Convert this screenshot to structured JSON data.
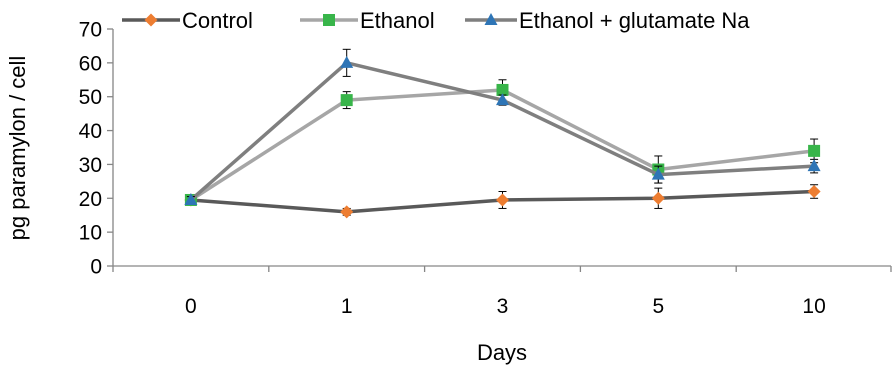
{
  "chart_data": {
    "type": "line",
    "categories": [
      "0",
      "1",
      "3",
      "5",
      "10"
    ],
    "xlabel": "Days",
    "ylabel": "pg paramylon / cell",
    "ylim": [
      0,
      70
    ],
    "yticks": [
      "0",
      "10",
      "20",
      "30",
      "40",
      "50",
      "60",
      "70"
    ],
    "grid": false,
    "legend_position": "top",
    "series": [
      {
        "name": "Control",
        "values": [
          19.5,
          16,
          19.5,
          20,
          22
        ],
        "errors": [
          1,
          1,
          2.5,
          3,
          2
        ],
        "line_color": "#595959",
        "marker": "diamond",
        "marker_color": "#ed7d31"
      },
      {
        "name": "Ethanol",
        "values": [
          19.5,
          49,
          52,
          28.5,
          34
        ],
        "errors": [
          1,
          2.5,
          3,
          4,
          3.5
        ],
        "line_color": "#a6a6a6",
        "marker": "square",
        "marker_color": "#38b54a"
      },
      {
        "name": "Ethanol + glutamate Na",
        "values": [
          19.5,
          60,
          49,
          27,
          29.5
        ],
        "errors": [
          1,
          4,
          1.5,
          2.5,
          2
        ],
        "line_color": "#7f7f7f",
        "marker": "triangle",
        "marker_color": "#2e75b6"
      }
    ]
  }
}
